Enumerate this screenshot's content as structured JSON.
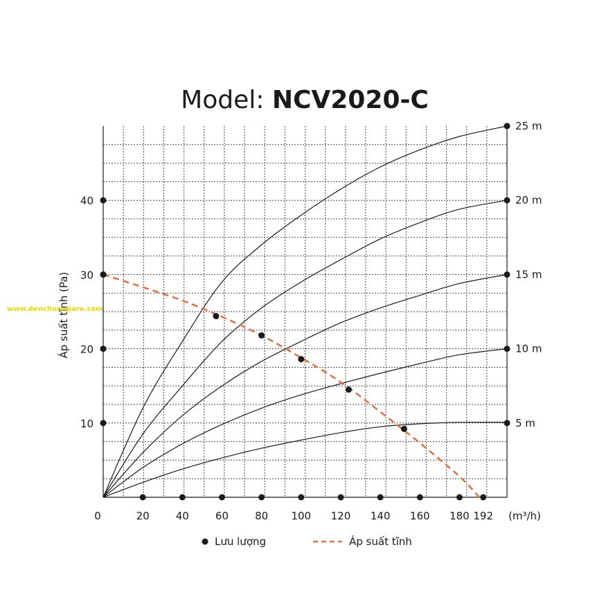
{
  "title": {
    "prefix": "Model: ",
    "model": "NCV2020-C"
  },
  "watermark": "www.denchumgiare.com",
  "chart_data": {
    "type": "line",
    "ylabel": "Áp suất tĩnh (Pa)",
    "xunit": "(m³/h)",
    "xlim": [
      0,
      204
    ],
    "ylim": [
      0,
      50
    ],
    "grid": true,
    "x_ticks": [
      {
        "value": 0,
        "label": "0"
      },
      {
        "value": 20,
        "label": "20"
      },
      {
        "value": 40,
        "label": "40"
      },
      {
        "value": 60,
        "label": "60"
      },
      {
        "value": 80,
        "label": "80"
      },
      {
        "value": 100,
        "label": "100"
      },
      {
        "value": 120,
        "label": "120"
      },
      {
        "value": 140,
        "label": "140"
      },
      {
        "value": 160,
        "label": "160"
      },
      {
        "value": 180,
        "label": "180"
      },
      {
        "value": 192,
        "label": "192"
      }
    ],
    "y_ticks": [
      {
        "value": 10,
        "label": "10"
      },
      {
        "value": 20,
        "label": "20"
      },
      {
        "value": 30,
        "label": "30"
      },
      {
        "value": 40,
        "label": "40"
      }
    ],
    "length_curves": [
      {
        "label": "25 m",
        "end_y": 50,
        "points": [
          [
            0,
            0
          ],
          [
            20,
            12
          ],
          [
            40,
            21
          ],
          [
            60,
            29
          ],
          [
            80,
            34
          ],
          [
            100,
            38
          ],
          [
            120,
            41.5
          ],
          [
            140,
            44.5
          ],
          [
            160,
            46.8
          ],
          [
            180,
            48.6
          ],
          [
            204,
            50
          ]
        ]
      },
      {
        "label": "20 m",
        "end_y": 40,
        "points": [
          [
            0,
            0
          ],
          [
            20,
            8.5
          ],
          [
            40,
            15
          ],
          [
            60,
            21
          ],
          [
            80,
            25.5
          ],
          [
            100,
            29
          ],
          [
            120,
            32
          ],
          [
            140,
            34.8
          ],
          [
            160,
            37
          ],
          [
            180,
            38.8
          ],
          [
            204,
            40
          ]
        ]
      },
      {
        "label": "15 m",
        "end_y": 30,
        "points": [
          [
            0,
            0
          ],
          [
            20,
            6
          ],
          [
            40,
            11
          ],
          [
            60,
            15
          ],
          [
            80,
            18.3
          ],
          [
            100,
            21
          ],
          [
            120,
            23.5
          ],
          [
            140,
            25.5
          ],
          [
            160,
            27.2
          ],
          [
            180,
            28.8
          ],
          [
            204,
            30
          ]
        ]
      },
      {
        "label": "10 m",
        "end_y": 20,
        "points": [
          [
            0,
            0
          ],
          [
            20,
            4
          ],
          [
            40,
            7.2
          ],
          [
            60,
            9.8
          ],
          [
            80,
            12
          ],
          [
            100,
            13.8
          ],
          [
            120,
            15.3
          ],
          [
            140,
            16.7
          ],
          [
            160,
            18
          ],
          [
            180,
            19.2
          ],
          [
            204,
            20
          ]
        ]
      },
      {
        "label": "5 m",
        "end_y": 10,
        "points": [
          [
            0,
            0
          ],
          [
            20,
            2
          ],
          [
            40,
            3.8
          ],
          [
            60,
            5.3
          ],
          [
            80,
            6.6
          ],
          [
            100,
            7.7
          ],
          [
            120,
            8.7
          ],
          [
            140,
            9.5
          ],
          [
            160,
            9.9
          ],
          [
            180,
            10.1
          ],
          [
            204,
            10.1
          ]
        ]
      }
    ],
    "flow_points": [
      {
        "x": 57,
        "y": 24.4
      },
      {
        "x": 80,
        "y": 21.8
      },
      {
        "x": 100,
        "y": 18.6
      },
      {
        "x": 124,
        "y": 14.5
      },
      {
        "x": 152,
        "y": 9.2
      }
    ],
    "static_pressure": [
      [
        0,
        30
      ],
      [
        20,
        28.3
      ],
      [
        40,
        26.5
      ],
      [
        60,
        24.3
      ],
      [
        80,
        21.8
      ],
      [
        100,
        18.8
      ],
      [
        120,
        15.5
      ],
      [
        140,
        11.5
      ],
      [
        160,
        7.3
      ],
      [
        180,
        2.8
      ],
      [
        190,
        0
      ]
    ],
    "legend": {
      "flow": "Lưu lượng",
      "pressure": "Áp suất tĩnh"
    },
    "colors": {
      "curve": "#1a1a1a",
      "pressure": "#e07040",
      "grid": "#444444",
      "watermark": "#e8d800"
    }
  }
}
